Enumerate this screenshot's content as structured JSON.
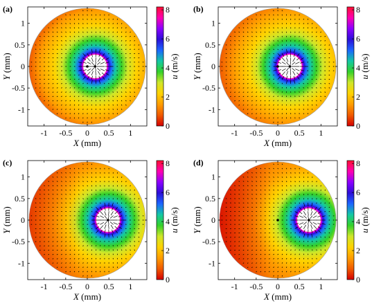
{
  "chart_data": [
    {
      "type": "heatmap",
      "panel_label": "(a)",
      "xlabel": "X (mm)",
      "xlabel_var": "X",
      "xlabel_unit": "(mm)",
      "ylabel": "Y (mm)",
      "ylabel_var": "Y",
      "ylabel_unit": "(mm)",
      "colorbar_label": "u (m/s)",
      "colorbar_var": "u",
      "colorbar_unit": "(m/s)",
      "xticks": [
        "-1",
        "-0.5",
        "0",
        "0.5",
        "1"
      ],
      "xtick_values": [
        -1,
        -0.5,
        0,
        0.5,
        1
      ],
      "yticks": [
        "-1",
        "-0.5",
        "0",
        "0.5",
        "1"
      ],
      "ytick_values": [
        -1,
        -0.5,
        0,
        0.5,
        1
      ],
      "cbticks": [
        "0",
        "2",
        "4",
        "6",
        "8"
      ],
      "cbtick_values": [
        0,
        2,
        4,
        6,
        8
      ],
      "xlim": [
        -1.38,
        1.38
      ],
      "ylim": [
        -1.38,
        1.38
      ],
      "clim": [
        0,
        8.2
      ],
      "domain_radius": 1.35,
      "vortex_center": [
        0.18,
        0
      ],
      "ring_radius": 0.33,
      "points": [
        [
          0,
          0
        ],
        [
          0.18,
          0
        ]
      ],
      "show_xlabel": true
    },
    {
      "type": "heatmap",
      "panel_label": "(b)",
      "xlabel": "X (mm)",
      "xlabel_var": "X",
      "xlabel_unit": "(mm)",
      "ylabel": "Y (mm)",
      "ylabel_var": "Y",
      "ylabel_unit": "(mm)",
      "colorbar_label": "u (m/s)",
      "colorbar_var": "u",
      "colorbar_unit": "(m/s)",
      "xticks": [
        "-1",
        "-0.5",
        "0",
        "0.5",
        "1"
      ],
      "xtick_values": [
        -1,
        -0.5,
        0,
        0.5,
        1
      ],
      "yticks": [
        "-1",
        "-0.5",
        "0",
        "0.5",
        "1"
      ],
      "ytick_values": [
        -1,
        -0.5,
        0,
        0.5,
        1
      ],
      "cbticks": [
        "0",
        "2",
        "4",
        "6",
        "8"
      ],
      "cbtick_values": [
        0,
        2,
        4,
        6,
        8
      ],
      "xlim": [
        -1.38,
        1.38
      ],
      "ylim": [
        -1.38,
        1.38
      ],
      "clim": [
        0,
        8.2
      ],
      "domain_radius": 1.35,
      "vortex_center": [
        0.28,
        0
      ],
      "ring_radius": 0.33,
      "points": [
        [
          0,
          0
        ],
        [
          0.28,
          0
        ]
      ],
      "show_xlabel": true
    },
    {
      "type": "heatmap",
      "panel_label": "(c)",
      "xlabel": "X (mm)",
      "xlabel_var": "X",
      "xlabel_unit": "(mm)",
      "ylabel": "Y (mm)",
      "ylabel_var": "Y",
      "ylabel_unit": "(mm)",
      "colorbar_label": "u (m/s)",
      "colorbar_var": "u",
      "colorbar_unit": "(m/s)",
      "xticks": [
        "-1",
        "-0.5",
        "0",
        "0.5",
        "1"
      ],
      "xtick_values": [
        -1,
        -0.5,
        0,
        0.5,
        1
      ],
      "yticks": [
        "-1",
        "-0.5",
        "0",
        "0.5",
        "1"
      ],
      "ytick_values": [
        -1,
        -0.5,
        0,
        0.5,
        1
      ],
      "cbticks": [
        "0",
        "2",
        "4",
        "6",
        "8"
      ],
      "cbtick_values": [
        0,
        2,
        4,
        6,
        8
      ],
      "xlim": [
        -1.38,
        1.38
      ],
      "ylim": [
        -1.38,
        1.38
      ],
      "clim": [
        0,
        8.2
      ],
      "domain_radius": 1.35,
      "vortex_center": [
        0.48,
        0
      ],
      "ring_radius": 0.33,
      "points": [
        [
          0.48,
          0
        ]
      ],
      "show_xlabel": true
    },
    {
      "type": "heatmap",
      "panel_label": "(d)",
      "xlabel": "X (mm)",
      "xlabel_var": "X",
      "xlabel_unit": "(mm)",
      "ylabel": "Y (mm)",
      "ylabel_var": "Y",
      "ylabel_unit": "(mm)",
      "colorbar_label": "u (m/s)",
      "colorbar_var": "u",
      "colorbar_unit": "(m/s)",
      "xticks": [
        "-1",
        "-0.5",
        "0",
        "0.5",
        "1"
      ],
      "xtick_values": [
        -1,
        -0.5,
        0,
        0.5,
        1
      ],
      "yticks": [
        "-1",
        "-0.5",
        "0",
        "0.5",
        "1"
      ],
      "ytick_values": [
        -1,
        -0.5,
        0,
        0.5,
        1
      ],
      "cbticks": [
        "0",
        "2",
        "4",
        "6",
        "8"
      ],
      "cbtick_values": [
        0,
        2,
        4,
        6,
        8
      ],
      "xlim": [
        -1.38,
        1.38
      ],
      "ylim": [
        -1.38,
        1.38
      ],
      "clim": [
        0,
        8.2
      ],
      "domain_radius": 1.35,
      "vortex_center": [
        0.72,
        0
      ],
      "ring_radius": 0.33,
      "points": [
        [
          0,
          0
        ],
        [
          0.72,
          0
        ]
      ],
      "show_xlabel": true
    }
  ],
  "colors": {
    "colormap": [
      "#d40000",
      "#f05a00",
      "#ff9d00",
      "#ffd200",
      "#cfe62a",
      "#35d12a",
      "#14c8a4",
      "#1c66ff",
      "#2c0fd8",
      "#8b00ff",
      "#ff00b0",
      "#ff1030"
    ],
    "arrow": "#000000",
    "inner": "#ffffff"
  }
}
